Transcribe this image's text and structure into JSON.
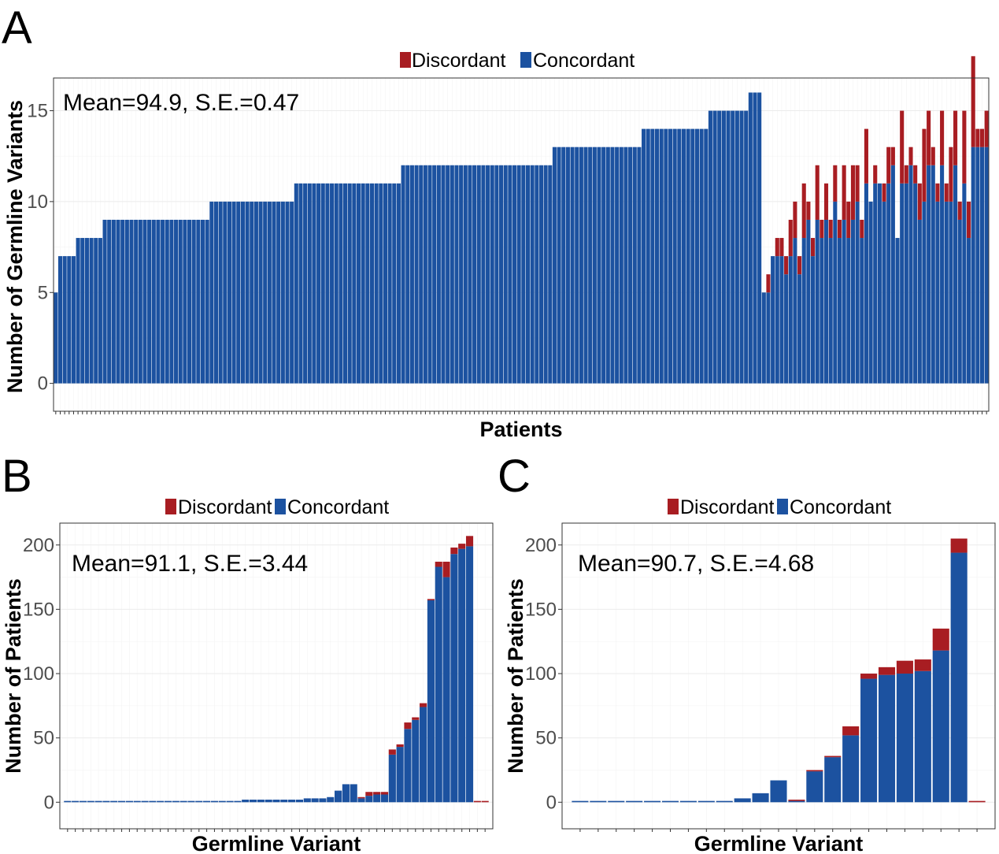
{
  "colors": {
    "discordant": "#a81d22",
    "concordant": "#1c52a0"
  },
  "chart_data": [
    {
      "panel": "A",
      "type": "bar",
      "stacked": true,
      "legend": [
        "Discordant",
        "Concordant"
      ],
      "legend_position": "top",
      "annotation": "Mean=94.9, S.E.=0.47",
      "xlabel": "Patients",
      "ylabel": "Number of Germline Variants",
      "ylim": [
        0,
        16.8
      ],
      "yticks": [
        0,
        5,
        10,
        15
      ],
      "grid": true,
      "series": [
        {
          "name": "Concordant",
          "values": [
            5,
            7,
            7,
            7,
            7,
            8,
            8,
            8,
            8,
            8,
            8,
            9,
            9,
            9,
            9,
            9,
            9,
            9,
            9,
            9,
            9,
            9,
            9,
            9,
            9,
            9,
            9,
            9,
            9,
            9,
            9,
            9,
            9,
            9,
            9,
            10,
            10,
            10,
            10,
            10,
            10,
            10,
            10,
            10,
            10,
            10,
            10,
            10,
            10,
            10,
            10,
            10,
            10,
            10,
            11,
            11,
            11,
            11,
            11,
            11,
            11,
            11,
            11,
            11,
            11,
            11,
            11,
            11,
            11,
            11,
            11,
            11,
            11,
            11,
            11,
            11,
            11,
            11,
            12,
            12,
            12,
            12,
            12,
            12,
            12,
            12,
            12,
            12,
            12,
            12,
            12,
            12,
            12,
            12,
            12,
            12,
            12,
            12,
            12,
            12,
            12,
            12,
            12,
            12,
            12,
            12,
            12,
            12,
            12,
            12,
            12,
            12,
            13,
            13,
            13,
            13,
            13,
            13,
            13,
            13,
            13,
            13,
            13,
            13,
            13,
            13,
            13,
            13,
            13,
            13,
            13,
            13,
            14,
            14,
            14,
            14,
            14,
            14,
            14,
            14,
            14,
            14,
            14,
            14,
            14,
            14,
            14,
            15,
            15,
            15,
            15,
            15,
            15,
            15,
            15,
            15,
            16,
            16,
            16,
            5,
            5,
            7,
            7,
            7,
            6,
            7,
            8,
            6,
            8,
            9,
            7,
            9,
            8,
            9,
            8,
            10,
            8,
            9,
            8,
            9,
            10,
            8,
            11,
            10,
            11,
            11,
            10,
            11,
            12,
            8,
            11,
            11,
            12,
            11,
            9,
            10,
            12,
            12,
            10,
            12,
            10,
            10,
            12,
            9,
            11,
            8,
            13,
            13,
            13,
            13
          ]
        },
        {
          "name": "Discordant",
          "values": [
            0,
            0,
            0,
            0,
            0,
            0,
            0,
            0,
            0,
            0,
            0,
            0,
            0,
            0,
            0,
            0,
            0,
            0,
            0,
            0,
            0,
            0,
            0,
            0,
            0,
            0,
            0,
            0,
            0,
            0,
            0,
            0,
            0,
            0,
            0,
            0,
            0,
            0,
            0,
            0,
            0,
            0,
            0,
            0,
            0,
            0,
            0,
            0,
            0,
            0,
            0,
            0,
            0,
            0,
            0,
            0,
            0,
            0,
            0,
            0,
            0,
            0,
            0,
            0,
            0,
            0,
            0,
            0,
            0,
            0,
            0,
            0,
            0,
            0,
            0,
            0,
            0,
            0,
            0,
            0,
            0,
            0,
            0,
            0,
            0,
            0,
            0,
            0,
            0,
            0,
            0,
            0,
            0,
            0,
            0,
            0,
            0,
            0,
            0,
            0,
            0,
            0,
            0,
            0,
            0,
            0,
            0,
            0,
            0,
            0,
            0,
            0,
            0,
            0,
            0,
            0,
            0,
            0,
            0,
            0,
            0,
            0,
            0,
            0,
            0,
            0,
            0,
            0,
            0,
            0,
            0,
            0,
            0,
            0,
            0,
            0,
            0,
            0,
            0,
            0,
            0,
            0,
            0,
            0,
            0,
            0,
            0,
            0,
            0,
            0,
            0,
            0,
            0,
            0,
            0,
            0,
            0,
            0,
            0,
            0,
            1,
            0,
            1,
            1,
            1,
            2,
            2,
            1,
            3,
            1,
            1,
            3,
            1,
            2,
            1,
            2,
            1,
            3,
            2,
            3,
            2,
            1,
            3,
            0,
            1,
            0,
            1,
            2,
            1,
            0,
            4,
            1,
            1,
            1,
            2,
            4,
            3,
            1,
            1,
            3,
            1,
            3,
            3,
            1,
            4,
            2,
            5,
            1,
            1,
            2,
            3
          ]
        }
      ]
    },
    {
      "panel": "B",
      "type": "bar",
      "stacked": true,
      "legend": [
        "Discordant",
        "Concordant"
      ],
      "legend_position": "top",
      "annotation": "Mean=91.1, S.E.=3.44",
      "xlabel": "Germline Variant",
      "ylabel": "Number of Patients",
      "ylim": [
        0,
        217
      ],
      "yticks": [
        0,
        50,
        100,
        150,
        200
      ],
      "grid": true,
      "series": [
        {
          "name": "Concordant",
          "values": [
            1,
            1,
            1,
            1,
            1,
            1,
            1,
            1,
            1,
            1,
            1,
            1,
            1,
            1,
            1,
            1,
            1,
            1,
            1,
            1,
            1,
            1,
            1,
            2,
            2,
            2,
            2,
            2,
            2,
            2,
            2,
            3,
            3,
            3,
            4,
            9,
            14,
            14,
            3,
            5,
            6,
            6,
            37,
            43,
            57,
            64,
            74,
            157,
            183,
            175,
            193,
            197,
            199,
            0,
            0
          ]
        },
        {
          "name": "Discordant",
          "values": [
            0,
            0,
            0,
            0,
            0,
            0,
            0,
            0,
            0,
            0,
            0,
            0,
            0,
            0,
            0,
            0,
            0,
            0,
            0,
            0,
            0,
            0,
            0,
            0,
            0,
            0,
            0,
            0,
            0,
            0,
            0,
            0,
            0,
            0,
            0,
            0,
            0,
            0,
            1,
            3,
            2,
            2,
            4,
            2,
            5,
            2,
            3,
            1,
            4,
            12,
            5,
            4,
            8,
            1,
            1
          ]
        }
      ]
    },
    {
      "panel": "C",
      "type": "bar",
      "stacked": true,
      "legend": [
        "Discordant",
        "Concordant"
      ],
      "legend_position": "top",
      "annotation": "Mean=90.7, S.E.=4.68",
      "xlabel": "Germline Variant",
      "ylabel": "Number of Patients",
      "ylim": [
        0,
        217
      ],
      "yticks": [
        0,
        50,
        100,
        150,
        200
      ],
      "grid": true,
      "series": [
        {
          "name": "Concordant",
          "values": [
            1,
            1,
            1,
            1,
            1,
            1,
            1,
            1,
            1,
            3,
            7,
            17,
            1,
            24,
            35,
            52,
            96,
            99,
            100,
            102,
            118,
            194,
            0
          ]
        },
        {
          "name": "Discordant",
          "values": [
            0,
            0,
            0,
            0,
            0,
            0,
            0,
            0,
            0,
            0,
            0,
            0,
            1,
            1,
            1,
            7,
            4,
            6,
            10,
            9,
            17,
            11,
            1
          ]
        }
      ]
    }
  ]
}
